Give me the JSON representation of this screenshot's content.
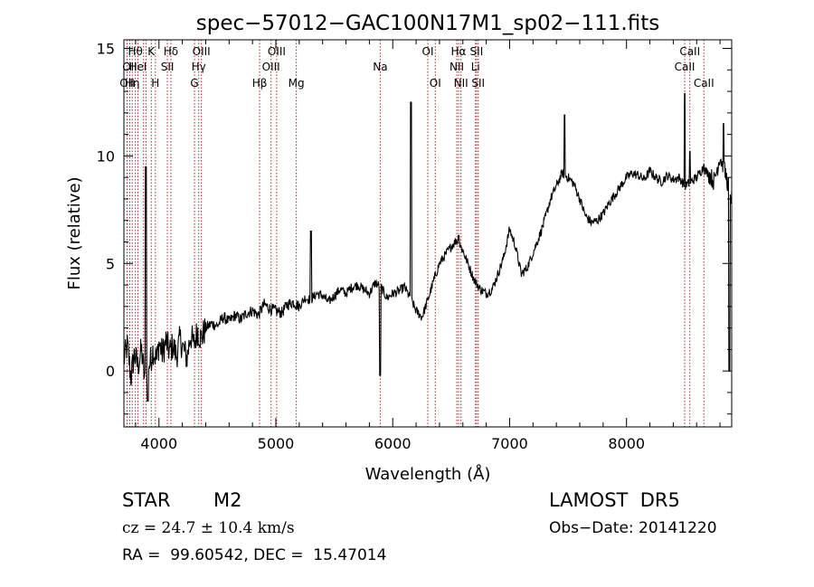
{
  "chart_data": {
    "type": "line",
    "title": "spec−57012−GAC100N17M1_sp02−111.fits",
    "xlabel": "Wavelength (Å)",
    "ylabel": "Flux (relative)",
    "xlim": [
      3700,
      8900
    ],
    "ylim": [
      -2.6,
      15.4
    ],
    "xticks": [
      4000,
      5000,
      6000,
      7000,
      8000
    ],
    "xtick_labels": [
      "4000",
      "5000",
      "6000",
      "7000",
      "8000"
    ],
    "yticks": [
      0,
      5,
      10,
      15
    ],
    "ytick_labels": [
      "0",
      "5",
      "10",
      "15"
    ],
    "grid": false,
    "legend": "none",
    "line_color": "#000000",
    "marker_line_color": "#a52a2a",
    "series": [
      {
        "x": [
          3700,
          3730,
          3760,
          3790,
          3820,
          3850,
          3880,
          3900,
          3920,
          3950,
          3980,
          4000,
          4030,
          4060,
          4090,
          4120,
          4150,
          4180,
          4210,
          4240,
          4270,
          4300,
          4330,
          4360,
          4400,
          4450,
          4500,
          4550,
          4600,
          4650,
          4700,
          4750,
          4800,
          4850,
          4900,
          4950,
          5000,
          5050,
          5100,
          5150,
          5200,
          5250,
          5300,
          5350,
          5400,
          5450,
          5500,
          5550,
          5600,
          5650,
          5700,
          5750,
          5800,
          5850,
          5900,
          5950,
          6000,
          6050,
          6100,
          6150,
          6200,
          6250,
          6300,
          6350,
          6400,
          6450,
          6500,
          6550,
          6600,
          6650,
          6700,
          6750,
          6800,
          6850,
          6900,
          6950,
          7000,
          7050,
          7100,
          7150,
          7200,
          7250,
          7300,
          7350,
          7400,
          7450,
          7500,
          7550,
          7600,
          7650,
          7700,
          7750,
          7800,
          7850,
          7900,
          7950,
          8000,
          8050,
          8100,
          8150,
          8200,
          8250,
          8300,
          8350,
          8400,
          8450,
          8500,
          8550,
          8600,
          8650,
          8700,
          8750,
          8800,
          8850,
          8900
        ],
        "y": [
          0.5,
          1.2,
          -0.3,
          0.8,
          0.2,
          1.0,
          -0.5,
          0.6,
          0.3,
          1.0,
          0.5,
          1.3,
          0.8,
          1.4,
          0.9,
          1.2,
          0.7,
          1.5,
          1.0,
          0.6,
          1.7,
          1.2,
          1.9,
          1.5,
          2.0,
          2.2,
          2.1,
          2.5,
          2.3,
          2.6,
          2.4,
          2.7,
          2.8,
          2.6,
          3.1,
          2.9,
          2.8,
          2.7,
          3.1,
          3.2,
          3.0,
          3.4,
          3.3,
          3.6,
          3.5,
          3.2,
          3.5,
          3.8,
          3.6,
          3.9,
          4.0,
          3.8,
          3.6,
          4.1,
          3.9,
          3.4,
          3.6,
          3.7,
          3.9,
          3.4,
          2.8,
          2.5,
          3.3,
          4.2,
          5.0,
          5.4,
          5.8,
          6.1,
          5.6,
          4.9,
          4.2,
          3.8,
          3.6,
          3.8,
          4.5,
          5.3,
          6.6,
          5.8,
          4.5,
          4.8,
          5.5,
          6.2,
          7.0,
          8.0,
          8.6,
          9.2,
          9.0,
          8.7,
          8.0,
          7.2,
          6.9,
          7.0,
          7.3,
          7.8,
          8.2,
          8.6,
          9.0,
          9.2,
          9.1,
          8.9,
          9.3,
          9.0,
          8.8,
          9.1,
          8.9,
          9.0,
          8.6,
          8.8,
          9.0,
          9.4,
          9.2,
          8.8,
          10.0,
          9.1,
          8.0
        ],
        "features": [
          {
            "x": 3889,
            "y": 9.5
          },
          {
            "x": 3905,
            "y": -1.4
          },
          {
            "x": 4340,
            "y": 1.2
          },
          {
            "x": 5300,
            "y": 6.5
          },
          {
            "x": 5893,
            "y": -0.2
          },
          {
            "x": 6155,
            "y": 12.5
          },
          {
            "x": 6563,
            "y": 6.3
          },
          {
            "x": 7470,
            "y": 11.9
          },
          {
            "x": 8498,
            "y": 12.9
          },
          {
            "x": 8542,
            "y": 10.2
          },
          {
            "x": 8662,
            "y": 9.6
          },
          {
            "x": 8830,
            "y": 11.5
          },
          {
            "x": 8880,
            "y": 0.0
          }
        ]
      }
    ],
    "line_markers": [
      {
        "x": 3727,
        "label": "OII",
        "row": 3
      },
      {
        "x": 3750,
        "label": "OII",
        "row": 2
      },
      {
        "x": 3771,
        "label": "Hη",
        "row": 3
      },
      {
        "x": 3798,
        "label": "Hθ",
        "row": 1
      },
      {
        "x": 3820,
        "label": "HeI",
        "row": 2
      },
      {
        "x": 3868,
        "label": "",
        "row": 0
      },
      {
        "x": 3889,
        "label": "",
        "row": 0
      },
      {
        "x": 3934,
        "label": "K",
        "row": 1
      },
      {
        "x": 3969,
        "label": "H",
        "row": 3
      },
      {
        "x": 4072,
        "label": "SII",
        "row": 2
      },
      {
        "x": 4102,
        "label": "Hδ",
        "row": 1
      },
      {
        "x": 4304,
        "label": "G",
        "row": 3
      },
      {
        "x": 4340,
        "label": "Hγ",
        "row": 2
      },
      {
        "x": 4363,
        "label": "OIII",
        "row": 1
      },
      {
        "x": 4861,
        "label": "Hβ",
        "row": 3
      },
      {
        "x": 4959,
        "label": "OIII",
        "row": 2
      },
      {
        "x": 5007,
        "label": "OIII",
        "row": 1
      },
      {
        "x": 5175,
        "label": "Mg",
        "row": 3
      },
      {
        "x": 5893,
        "label": "Na",
        "row": 2
      },
      {
        "x": 6300,
        "label": "OI",
        "row": 1
      },
      {
        "x": 6364,
        "label": "OI",
        "row": 3
      },
      {
        "x": 6548,
        "label": "NII",
        "row": 2
      },
      {
        "x": 6563,
        "label": "Hα",
        "row": 1
      },
      {
        "x": 6584,
        "label": "NII",
        "row": 3
      },
      {
        "x": 6708,
        "label": "Li",
        "row": 2
      },
      {
        "x": 6717,
        "label": "SII",
        "row": 1
      },
      {
        "x": 6731,
        "label": "SII",
        "row": 3
      },
      {
        "x": 8498,
        "label": "CaII",
        "row": 2
      },
      {
        "x": 8542,
        "label": "CaII",
        "row": 1
      },
      {
        "x": 8662,
        "label": "CaII",
        "row": 3
      }
    ]
  },
  "info": {
    "class": "STAR",
    "subclass": "M2",
    "survey": "LAMOST  DR5",
    "cz": "cz = 24.7 ± 10.4 km/s",
    "obs_date": "Obs−Date: 20141220",
    "coords": "RA =  99.60542, DEC =  15.47014"
  }
}
